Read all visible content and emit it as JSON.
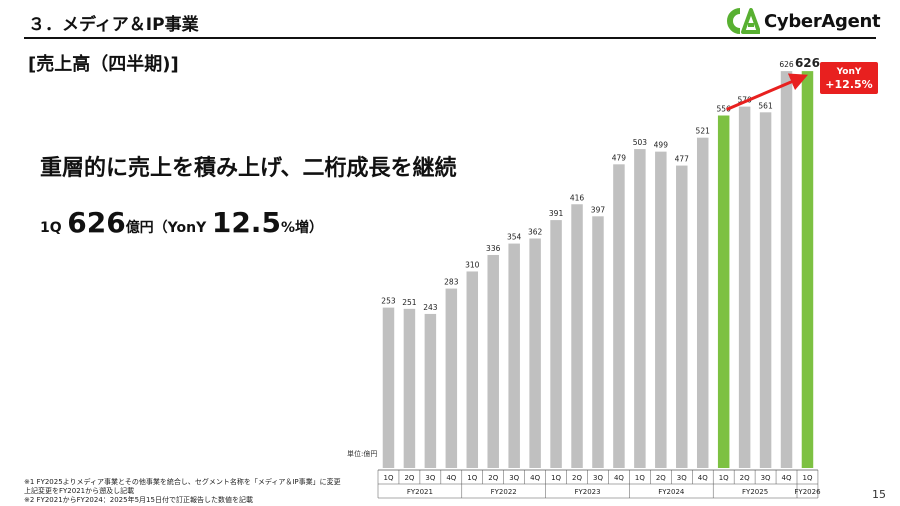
{
  "header": {
    "section_title": "３．メディア＆IP事業",
    "slide_title": "[売上高（四半期)]",
    "logo_text": "CyberAgent"
  },
  "summary": {
    "headline": "重層的に売上を積み上げ、二桁成長を継続",
    "kpi_quarter": "1Q",
    "kpi_value": "626",
    "kpi_unit": "億円（YonY",
    "kpi_growth": "12.5",
    "kpi_suffix": "%増）"
  },
  "footnotes": [
    "※1  FY2025よりメディア事業とその他事業を統合し、セグメント名称を「メディア＆IP事業」に変更",
    "       上記変更をFY2021から遡及し記載",
    "※2  FY2021からFY2024：2025年5月15日付で訂正報告した数値を記載"
  ],
  "page_number": "15",
  "chart_data": {
    "type": "bar",
    "unit_label": "単位:億円",
    "quarters": [
      "1Q",
      "2Q",
      "3Q",
      "4Q",
      "1Q",
      "2Q",
      "3Q",
      "4Q",
      "1Q",
      "2Q",
      "3Q",
      "4Q",
      "1Q",
      "2Q",
      "3Q",
      "4Q",
      "1Q",
      "2Q",
      "3Q",
      "4Q",
      "1Q"
    ],
    "values": [
      253,
      251,
      243,
      283,
      310,
      336,
      354,
      362,
      391,
      416,
      397,
      479,
      503,
      499,
      477,
      521,
      556,
      570,
      561,
      626,
      626
    ],
    "highlight": [
      false,
      false,
      false,
      false,
      false,
      false,
      false,
      false,
      false,
      false,
      false,
      false,
      false,
      false,
      false,
      false,
      true,
      false,
      false,
      false,
      true
    ],
    "fiscal_years": [
      {
        "label": "FY2021",
        "count": 4
      },
      {
        "label": "FY2022",
        "count": 4
      },
      {
        "label": "FY2023",
        "count": 4
      },
      {
        "label": "FY2024",
        "count": 4
      },
      {
        "label": "FY2025",
        "count": 4
      },
      {
        "label": "FY2026",
        "count": 1
      }
    ],
    "callout": {
      "line1": "YonY",
      "line2": "+12.5%"
    },
    "colors": {
      "bar": "#c0c0c0",
      "highlight": "#7dc142",
      "arrow": "#e8201f",
      "callout": "#e8201f"
    }
  }
}
